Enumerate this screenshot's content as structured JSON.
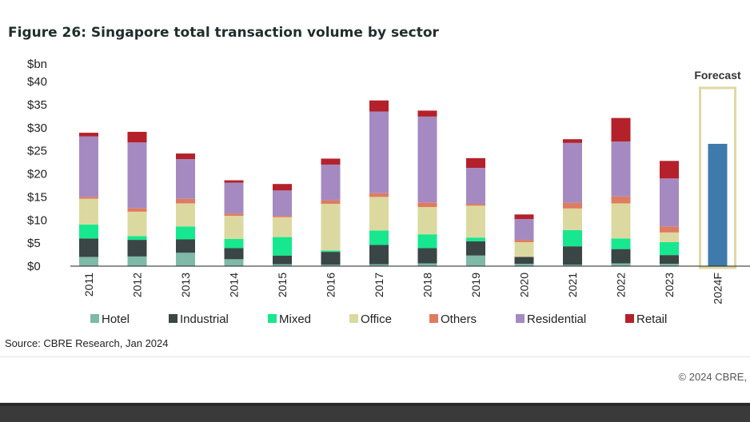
{
  "chart_data": {
    "type": "bar",
    "stacked": true,
    "title": "Figure 26: Singapore total transaction volume by sector",
    "ylabel": "$bn",
    "ylim": [
      0,
      40
    ],
    "yticks": [
      "$0",
      "$5",
      "$10",
      "$15",
      "$20",
      "$25",
      "$30",
      "$35",
      "$40"
    ],
    "ytick_values": [
      0,
      5,
      10,
      15,
      20,
      25,
      30,
      35,
      40
    ],
    "categories": [
      "2011",
      "2012",
      "2013",
      "2014",
      "2015",
      "2016",
      "2017",
      "2018",
      "2019",
      "2020",
      "2021",
      "2022",
      "2023",
      "2024F"
    ],
    "series": [
      {
        "name": "Hotel",
        "color": "#7fb9a8",
        "values": [
          2.0,
          2.1,
          2.9,
          1.5,
          0.4,
          0.3,
          0.4,
          0.6,
          2.3,
          0.5,
          0.3,
          0.6,
          0.5,
          0
        ]
      },
      {
        "name": "Industrial",
        "color": "#3a4646",
        "values": [
          4.0,
          3.6,
          2.9,
          2.4,
          1.9,
          2.8,
          4.2,
          3.3,
          3.1,
          1.5,
          4.0,
          3.1,
          1.9,
          0
        ]
      },
      {
        "name": "Mixed",
        "color": "#17e88f",
        "values": [
          3.0,
          0.8,
          2.8,
          2.0,
          4.0,
          0.3,
          3.1,
          3.0,
          0.8,
          0,
          3.5,
          2.3,
          2.8,
          0
        ]
      },
      {
        "name": "Office",
        "color": "#dbd99f",
        "values": [
          5.6,
          5.3,
          5.0,
          5.0,
          4.3,
          10.1,
          7.3,
          5.9,
          6.9,
          3.2,
          4.7,
          7.6,
          2.1,
          0
        ]
      },
      {
        "name": "Others",
        "color": "#df7b61",
        "values": [
          0.4,
          0.8,
          1.0,
          0.5,
          0.3,
          0.8,
          0.8,
          1.0,
          0.4,
          0.5,
          1.2,
          1.5,
          1.3,
          0
        ]
      },
      {
        "name": "Residential",
        "color": "#a58ac1",
        "values": [
          13.1,
          14.2,
          8.6,
          6.7,
          5.5,
          7.7,
          17.7,
          18.6,
          7.8,
          4.5,
          13.0,
          11.9,
          10.4,
          0
        ]
      },
      {
        "name": "Retail",
        "color": "#b4212b",
        "values": [
          0.8,
          2.3,
          1.2,
          0.5,
          1.4,
          1.3,
          2.4,
          1.3,
          2.1,
          1.0,
          0.8,
          5.1,
          3.8,
          0
        ]
      }
    ],
    "forecast": {
      "category": "2024F",
      "label": "Forecast",
      "value": 26.5,
      "color": "#3f7aac",
      "box_color": "#ded9a3"
    },
    "legend_position": "bottom",
    "grid": false
  },
  "footer": {
    "source": "Source: CBRE Research, Jan 2024",
    "copyright": "© 2024 CBRE,"
  }
}
